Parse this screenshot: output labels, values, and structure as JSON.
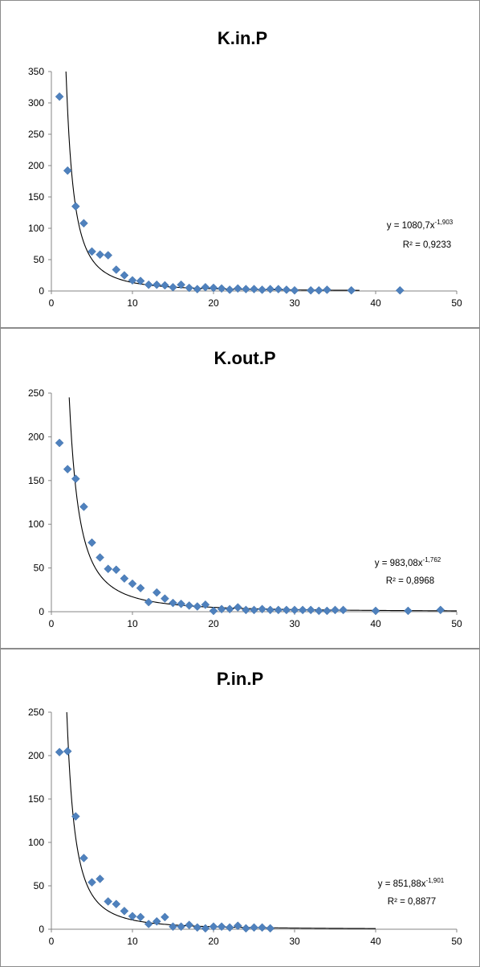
{
  "chart_data": [
    {
      "type": "scatter",
      "title": "K.in.P",
      "xlim": [
        0,
        50
      ],
      "ylim": [
        0,
        350
      ],
      "x_ticks": [
        0,
        10,
        20,
        30,
        40,
        50
      ],
      "y_ticks": [
        0,
        50,
        100,
        150,
        200,
        250,
        300,
        350
      ],
      "x_tick_labels": [
        "0",
        "10",
        "20",
        "30",
        "40",
        "50"
      ],
      "y_tick_labels": [
        "0",
        "50",
        "100",
        "150",
        "200",
        "250",
        "300",
        "350"
      ],
      "grid": false,
      "legend": "none",
      "series": [
        {
          "marker": "diamond",
          "color": "#4f81bd",
          "points": [
            [
              1,
              310
            ],
            [
              2,
              192
            ],
            [
              3,
              135
            ],
            [
              4,
              108
            ],
            [
              5,
              63
            ],
            [
              6,
              58
            ],
            [
              7,
              57
            ],
            [
              8,
              34
            ],
            [
              9,
              25
            ],
            [
              10,
              17
            ],
            [
              11,
              16
            ],
            [
              12,
              10
            ],
            [
              13,
              10
            ],
            [
              14,
              9
            ],
            [
              15,
              6
            ],
            [
              16,
              10
            ],
            [
              17,
              5
            ],
            [
              18,
              3
            ],
            [
              19,
              6
            ],
            [
              20,
              5
            ],
            [
              21,
              4
            ],
            [
              22,
              2
            ],
            [
              23,
              4
            ],
            [
              24,
              3
            ],
            [
              25,
              3
            ],
            [
              26,
              2
            ],
            [
              27,
              3
            ],
            [
              28,
              3
            ],
            [
              29,
              2
            ],
            [
              30,
              1
            ],
            [
              32,
              1
            ],
            [
              33,
              1
            ],
            [
              34,
              2
            ],
            [
              37,
              1
            ],
            [
              43,
              1
            ]
          ]
        }
      ],
      "trendline": {
        "type": "power",
        "coefficient": 1080.7,
        "exponent": -1.903,
        "x_range": [
          1.8,
          38
        ],
        "equation_base": "y = 1080,7x",
        "equation_exponent": "-1,903",
        "r_squared_label": "R² = 0,9233"
      }
    },
    {
      "type": "scatter",
      "title": "K.out.P",
      "xlim": [
        0,
        50
      ],
      "ylim": [
        0,
        250
      ],
      "x_ticks": [
        0,
        10,
        20,
        30,
        40,
        50
      ],
      "y_ticks": [
        0,
        50,
        100,
        150,
        200,
        250
      ],
      "x_tick_labels": [
        "0",
        "10",
        "20",
        "30",
        "40",
        "50"
      ],
      "y_tick_labels": [
        "0",
        "50",
        "100",
        "150",
        "200",
        "250"
      ],
      "grid": false,
      "legend": "none",
      "series": [
        {
          "marker": "diamond",
          "color": "#4f81bd",
          "points": [
            [
              1,
              193
            ],
            [
              2,
              163
            ],
            [
              3,
              152
            ],
            [
              4,
              120
            ],
            [
              5,
              79
            ],
            [
              6,
              62
            ],
            [
              7,
              49
            ],
            [
              8,
              48
            ],
            [
              9,
              38
            ],
            [
              10,
              32
            ],
            [
              11,
              27
            ],
            [
              12,
              11
            ],
            [
              13,
              22
            ],
            [
              14,
              15
            ],
            [
              15,
              10
            ],
            [
              16,
              9
            ],
            [
              17,
              7
            ],
            [
              18,
              6
            ],
            [
              19,
              8
            ],
            [
              20,
              1
            ],
            [
              21,
              3
            ],
            [
              22,
              3
            ],
            [
              23,
              5
            ],
            [
              24,
              2
            ],
            [
              25,
              2
            ],
            [
              26,
              3
            ],
            [
              27,
              2
            ],
            [
              28,
              2
            ],
            [
              29,
              2
            ],
            [
              30,
              2
            ],
            [
              31,
              2
            ],
            [
              32,
              2
            ],
            [
              33,
              1
            ],
            [
              34,
              1
            ],
            [
              35,
              2
            ],
            [
              36,
              2
            ],
            [
              40,
              1
            ],
            [
              44,
              1
            ],
            [
              48,
              2
            ]
          ]
        }
      ],
      "trendline": {
        "type": "power",
        "coefficient": 983.08,
        "exponent": -1.762,
        "x_range": [
          2.2,
          50
        ],
        "equation_base": "y = 983,08x",
        "equation_exponent": "-1,762",
        "r_squared_label": "R² = 0,8968"
      }
    },
    {
      "type": "scatter",
      "title": "P.in.P",
      "xlim": [
        0,
        50
      ],
      "ylim": [
        0,
        250
      ],
      "x_ticks": [
        0,
        10,
        20,
        30,
        40,
        50
      ],
      "y_ticks": [
        0,
        50,
        100,
        150,
        200,
        250
      ],
      "x_tick_labels": [
        "0",
        "10",
        "20",
        "30",
        "40",
        "50"
      ],
      "y_tick_labels": [
        "0",
        "50",
        "100",
        "150",
        "200",
        "250"
      ],
      "grid": false,
      "legend": "none",
      "series": [
        {
          "marker": "diamond",
          "color": "#4f81bd",
          "points": [
            [
              1,
              204
            ],
            [
              2,
              205
            ],
            [
              3,
              130
            ],
            [
              4,
              82
            ],
            [
              5,
              54
            ],
            [
              6,
              58
            ],
            [
              7,
              32
            ],
            [
              8,
              29
            ],
            [
              9,
              21
            ],
            [
              10,
              15
            ],
            [
              11,
              14
            ],
            [
              12,
              6
            ],
            [
              13,
              9
            ],
            [
              14,
              14
            ],
            [
              15,
              3
            ],
            [
              16,
              3
            ],
            [
              17,
              5
            ],
            [
              18,
              2
            ],
            [
              19,
              1
            ],
            [
              20,
              3
            ],
            [
              21,
              3
            ],
            [
              22,
              2
            ],
            [
              23,
              4
            ],
            [
              24,
              1
            ],
            [
              25,
              2
            ],
            [
              26,
              2
            ],
            [
              27,
              1
            ]
          ]
        }
      ],
      "trendline": {
        "type": "power",
        "coefficient": 851.88,
        "exponent": -1.901,
        "x_range": [
          1.9,
          40
        ],
        "equation_base": "y = 851,88x",
        "equation_exponent": "-1,901",
        "r_squared_label": "R² = 0,8877"
      }
    }
  ]
}
